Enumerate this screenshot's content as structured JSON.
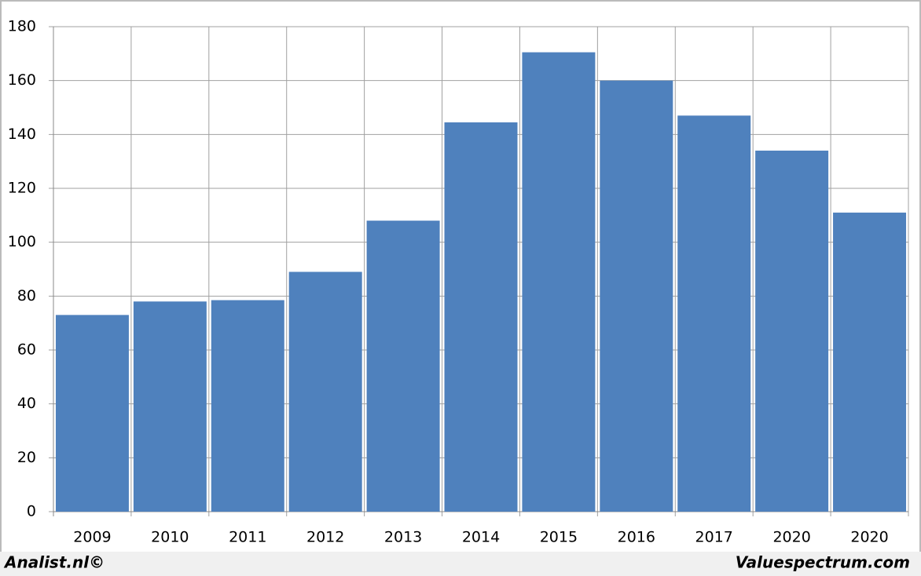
{
  "chart_data": {
    "type": "bar",
    "categories": [
      "2009",
      "2010",
      "2011",
      "2012",
      "2013",
      "2014",
      "2015",
      "2016",
      "2017",
      "2020",
      "2020"
    ],
    "values": [
      73,
      78,
      78.5,
      89,
      108,
      144.5,
      170.5,
      160,
      147,
      134,
      111
    ],
    "color": "#4f81bd",
    "ylim": [
      0,
      180
    ],
    "yticks": [
      0,
      20,
      40,
      60,
      80,
      100,
      120,
      140,
      160,
      180
    ],
    "grid": true,
    "footer_left": "Analist.nl©",
    "footer_right": "Valuespectrum.com"
  }
}
